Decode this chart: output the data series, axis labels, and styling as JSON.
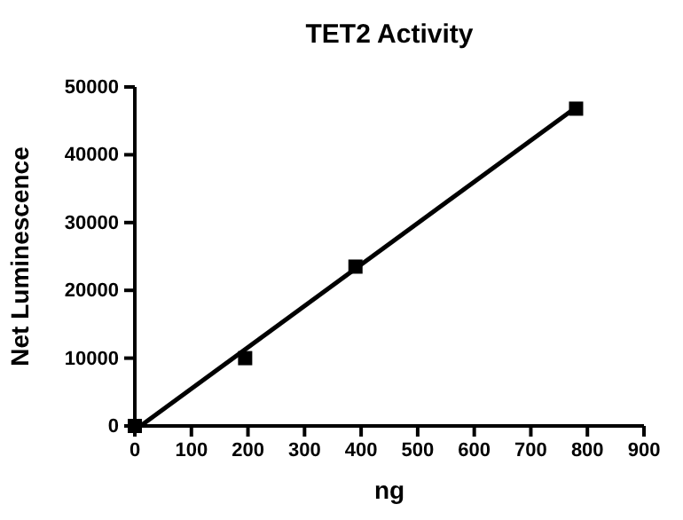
{
  "chart_data": {
    "type": "scatter",
    "title": "TET2 Activity",
    "xlabel": "ng",
    "ylabel": "Net Luminescence",
    "marker": "square",
    "grid": false,
    "xlim": [
      0,
      900
    ],
    "xticks": [
      0,
      100,
      200,
      300,
      400,
      500,
      600,
      700,
      800,
      900
    ],
    "ylim": [
      0,
      50000
    ],
    "yticks": [
      0,
      10000,
      20000,
      30000,
      40000,
      50000
    ],
    "series": [
      {
        "color": "#000000",
        "x": [
          0,
          195,
          390,
          780
        ],
        "values": [
          0,
          10000,
          23500,
          46800
        ]
      },
      {
        "type": "line",
        "color": "#000000",
        "marker": "none",
        "x": [
          10,
          780
        ],
        "values": [
          0,
          47000
        ]
      }
    ]
  }
}
